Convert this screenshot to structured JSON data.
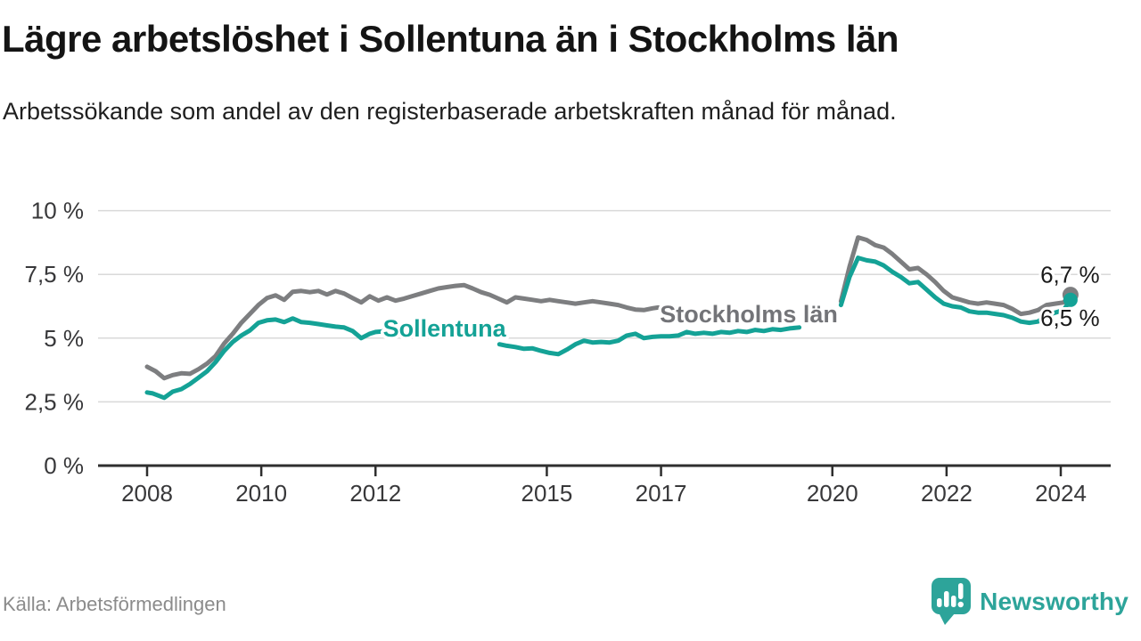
{
  "header": {
    "title": "Lägre arbetslöshet i Sollentuna än i Stockholms län",
    "subtitle": "Arbetssökande som andel av den registerbaserade arbetskraften månad för månad."
  },
  "footer": {
    "source": "Källa: Arbetsförmedlingen",
    "brand": "Newsworthy"
  },
  "colors": {
    "brand_teal": "#2da49a",
    "line_teal": "#14a296",
    "line_gray": "#7d7e80",
    "series_label_gray": "#737478",
    "axis": "#2e2e2e",
    "grid": "#d9d9d9",
    "tick_text": "#38383a",
    "end_label_text": "#1a1a1a",
    "source_text": "#8b8b8b"
  },
  "chart_data": {
    "type": "line",
    "unit": "%",
    "grid": true,
    "xlim": [
      2007.9,
      2024.7
    ],
    "ylim": [
      0,
      10.3
    ],
    "y_ticks": [
      {
        "v": 0,
        "label": "0 %"
      },
      {
        "v": 2.5,
        "label": "2,5 %"
      },
      {
        "v": 5,
        "label": "5 %"
      },
      {
        "v": 7.5,
        "label": "7,5 %"
      },
      {
        "v": 10,
        "label": "10 %"
      }
    ],
    "x_ticks": [
      {
        "v": 2008,
        "label": "2008"
      },
      {
        "v": 2010,
        "label": "2010"
      },
      {
        "v": 2012,
        "label": "2012"
      },
      {
        "v": 2015,
        "label": "2015"
      },
      {
        "v": 2017,
        "label": "2017"
      },
      {
        "v": 2020,
        "label": "2020"
      },
      {
        "v": 2022,
        "label": "2022"
      },
      {
        "v": 2024,
        "label": "2024"
      }
    ],
    "series": [
      {
        "id": "stockholms-lan",
        "name": "Stockholms län",
        "color": "#7d7e80",
        "label_color": "#737478",
        "end_label": "6,7 %",
        "end_value": 6.7,
        "dot_radius": 9,
        "label": {
          "x": 2016.98,
          "y": 5.63,
          "anchor": "start"
        },
        "segments": [
          [
            [
              2008.0,
              3.88
            ],
            [
              2008.15,
              3.7
            ],
            [
              2008.3,
              3.43
            ],
            [
              2008.45,
              3.55
            ],
            [
              2008.6,
              3.62
            ],
            [
              2008.75,
              3.6
            ],
            [
              2008.9,
              3.78
            ],
            [
              2009.05,
              4.0
            ],
            [
              2009.2,
              4.3
            ],
            [
              2009.35,
              4.79
            ],
            [
              2009.5,
              5.17
            ],
            [
              2009.65,
              5.6
            ],
            [
              2009.8,
              5.95
            ],
            [
              2009.95,
              6.3
            ],
            [
              2010.1,
              6.57
            ],
            [
              2010.25,
              6.68
            ],
            [
              2010.4,
              6.5
            ],
            [
              2010.55,
              6.82
            ],
            [
              2010.7,
              6.85
            ],
            [
              2010.85,
              6.8
            ],
            [
              2011.0,
              6.85
            ],
            [
              2011.15,
              6.71
            ],
            [
              2011.3,
              6.85
            ],
            [
              2011.45,
              6.75
            ],
            [
              2011.6,
              6.57
            ],
            [
              2011.75,
              6.4
            ],
            [
              2011.9,
              6.64
            ],
            [
              2012.05,
              6.47
            ],
            [
              2012.2,
              6.6
            ],
            [
              2012.35,
              6.47
            ],
            [
              2012.5,
              6.55
            ],
            [
              2012.65,
              6.65
            ],
            [
              2012.8,
              6.75
            ],
            [
              2012.95,
              6.85
            ],
            [
              2013.1,
              6.95
            ],
            [
              2013.25,
              7.0
            ],
            [
              2013.4,
              7.05
            ],
            [
              2013.55,
              7.08
            ],
            [
              2013.7,
              6.95
            ],
            [
              2013.85,
              6.8
            ],
            [
              2014.0,
              6.7
            ],
            [
              2014.15,
              6.55
            ],
            [
              2014.3,
              6.4
            ],
            [
              2014.45,
              6.6
            ],
            [
              2014.6,
              6.55
            ],
            [
              2014.75,
              6.5
            ],
            [
              2014.9,
              6.45
            ],
            [
              2015.05,
              6.5
            ],
            [
              2015.2,
              6.45
            ],
            [
              2015.35,
              6.4
            ],
            [
              2015.5,
              6.35
            ],
            [
              2015.65,
              6.4
            ],
            [
              2015.8,
              6.45
            ],
            [
              2015.95,
              6.4
            ],
            [
              2016.1,
              6.35
            ],
            [
              2016.25,
              6.3
            ],
            [
              2016.4,
              6.2
            ],
            [
              2016.55,
              6.12
            ],
            [
              2016.7,
              6.1
            ],
            [
              2016.85,
              6.17
            ],
            [
              2016.95,
              6.2
            ]
          ],
          [
            [
              2020.15,
              6.45
            ],
            [
              2020.3,
              7.8
            ],
            [
              2020.45,
              8.95
            ],
            [
              2020.6,
              8.85
            ],
            [
              2020.75,
              8.65
            ],
            [
              2020.9,
              8.55
            ],
            [
              2021.05,
              8.3
            ],
            [
              2021.2,
              8.0
            ],
            [
              2021.35,
              7.7
            ],
            [
              2021.5,
              7.75
            ],
            [
              2021.65,
              7.5
            ],
            [
              2021.8,
              7.2
            ],
            [
              2021.95,
              6.85
            ],
            [
              2022.1,
              6.6
            ],
            [
              2022.25,
              6.5
            ],
            [
              2022.4,
              6.4
            ],
            [
              2022.55,
              6.35
            ],
            [
              2022.7,
              6.4
            ],
            [
              2022.85,
              6.35
            ],
            [
              2023.0,
              6.3
            ],
            [
              2023.15,
              6.15
            ],
            [
              2023.3,
              5.95
            ],
            [
              2023.45,
              6.0
            ],
            [
              2023.6,
              6.1
            ],
            [
              2023.75,
              6.3
            ],
            [
              2023.9,
              6.35
            ],
            [
              2024.05,
              6.4
            ],
            [
              2024.17,
              6.7
            ]
          ]
        ]
      },
      {
        "id": "sollentuna",
        "name": "Sollentuna",
        "color": "#14a296",
        "label_color": "#14a296",
        "end_label": "6,5 %",
        "end_value": 6.5,
        "dot_radius": 8,
        "label": {
          "x": 2012.13,
          "y": 5.07,
          "anchor": "start"
        },
        "segments": [
          [
            [
              2008.0,
              2.87
            ],
            [
              2008.1,
              2.83
            ],
            [
              2008.3,
              2.66
            ],
            [
              2008.45,
              2.9
            ],
            [
              2008.6,
              3.0
            ],
            [
              2008.75,
              3.2
            ],
            [
              2008.9,
              3.45
            ],
            [
              2009.05,
              3.7
            ],
            [
              2009.2,
              4.06
            ],
            [
              2009.35,
              4.5
            ],
            [
              2009.5,
              4.85
            ],
            [
              2009.65,
              5.1
            ],
            [
              2009.8,
              5.3
            ],
            [
              2009.95,
              5.6
            ],
            [
              2010.1,
              5.7
            ],
            [
              2010.25,
              5.73
            ],
            [
              2010.4,
              5.63
            ],
            [
              2010.55,
              5.77
            ],
            [
              2010.7,
              5.63
            ],
            [
              2010.85,
              5.6
            ],
            [
              2011.0,
              5.55
            ],
            [
              2011.15,
              5.5
            ],
            [
              2011.3,
              5.45
            ],
            [
              2011.45,
              5.42
            ],
            [
              2011.6,
              5.28
            ],
            [
              2011.75,
              5.0
            ],
            [
              2011.9,
              5.17
            ],
            [
              2012.0,
              5.24
            ],
            [
              2012.15,
              5.27
            ]
          ],
          [
            [
              2014.17,
              4.76
            ],
            [
              2014.3,
              4.7
            ],
            [
              2014.45,
              4.65
            ],
            [
              2014.6,
              4.58
            ],
            [
              2014.75,
              4.6
            ],
            [
              2014.9,
              4.5
            ],
            [
              2015.05,
              4.42
            ],
            [
              2015.2,
              4.37
            ],
            [
              2015.35,
              4.55
            ],
            [
              2015.5,
              4.76
            ],
            [
              2015.65,
              4.9
            ],
            [
              2015.8,
              4.83
            ],
            [
              2015.95,
              4.85
            ],
            [
              2016.1,
              4.83
            ],
            [
              2016.25,
              4.9
            ],
            [
              2016.4,
              5.1
            ],
            [
              2016.55,
              5.17
            ],
            [
              2016.7,
              5.0
            ],
            [
              2016.85,
              5.05
            ],
            [
              2017.0,
              5.07
            ],
            [
              2017.15,
              5.07
            ],
            [
              2017.3,
              5.1
            ],
            [
              2017.45,
              5.24
            ],
            [
              2017.6,
              5.17
            ],
            [
              2017.75,
              5.21
            ],
            [
              2017.9,
              5.17
            ],
            [
              2018.05,
              5.24
            ],
            [
              2018.2,
              5.21
            ],
            [
              2018.35,
              5.28
            ],
            [
              2018.5,
              5.24
            ],
            [
              2018.65,
              5.32
            ],
            [
              2018.8,
              5.28
            ],
            [
              2018.95,
              5.35
            ],
            [
              2019.1,
              5.32
            ],
            [
              2019.25,
              5.38
            ],
            [
              2019.42,
              5.42
            ]
          ],
          [
            [
              2020.15,
              6.3
            ],
            [
              2020.3,
              7.4
            ],
            [
              2020.45,
              8.15
            ],
            [
              2020.6,
              8.05
            ],
            [
              2020.75,
              8.0
            ],
            [
              2020.9,
              7.85
            ],
            [
              2021.05,
              7.6
            ],
            [
              2021.2,
              7.4
            ],
            [
              2021.35,
              7.15
            ],
            [
              2021.5,
              7.2
            ],
            [
              2021.65,
              6.9
            ],
            [
              2021.8,
              6.6
            ],
            [
              2021.95,
              6.35
            ],
            [
              2022.1,
              6.25
            ],
            [
              2022.25,
              6.2
            ],
            [
              2022.4,
              6.05
            ],
            [
              2022.55,
              6.0
            ],
            [
              2022.7,
              6.0
            ],
            [
              2022.85,
              5.95
            ],
            [
              2023.0,
              5.9
            ],
            [
              2023.15,
              5.8
            ],
            [
              2023.3,
              5.65
            ],
            [
              2023.45,
              5.6
            ],
            [
              2023.6,
              5.65
            ],
            [
              2023.75,
              5.9
            ],
            [
              2023.9,
              6.0
            ],
            [
              2024.05,
              6.1
            ],
            [
              2024.17,
              6.5
            ]
          ]
        ]
      }
    ],
    "annotations": [
      {
        "text": "6,7 %",
        "x": 2024.68,
        "y": 7.17,
        "anchor": "end"
      },
      {
        "text": "6,5 %",
        "x": 2024.68,
        "y": 5.49,
        "anchor": "end"
      }
    ]
  }
}
